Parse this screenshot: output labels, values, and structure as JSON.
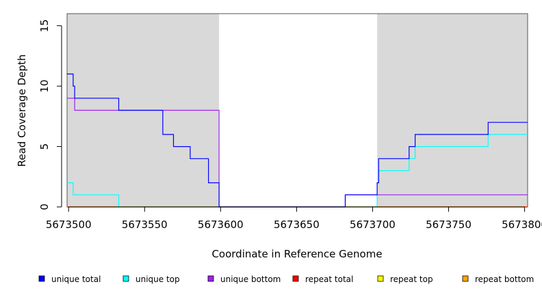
{
  "chart_data": {
    "type": "line",
    "step": true,
    "title": "",
    "xlabel": "Coordinate in Reference Genome",
    "ylabel": "Read Coverage Depth",
    "xlim": [
      5673499,
      5673802
    ],
    "ylim": [
      0,
      16
    ],
    "x_ticks": [
      5673500,
      5673550,
      5673600,
      5673650,
      5673700,
      5673750,
      5673800
    ],
    "x_tick_labels": [
      "5673500",
      "5673550",
      "5673600",
      "5673650",
      "5673700",
      "5673750",
      "5673800"
    ],
    "y_ticks": [
      0,
      5,
      10,
      15
    ],
    "y_tick_labels": [
      "0",
      "5",
      "10",
      "15"
    ],
    "shaded_regions": [
      {
        "from": 5673499,
        "to": 5673599,
        "color": "#d9d9d9"
      },
      {
        "from": 5673703,
        "to": 5673802,
        "color": "#d9d9d9"
      }
    ],
    "legend_position": "bottom",
    "series": [
      {
        "name": "unique total",
        "color": "#0000ff",
        "x": [
          5673499,
          5673503,
          5673504,
          5673533,
          5673562,
          5673569,
          5673580,
          5673592,
          5673599,
          5673682,
          5673703,
          5673704,
          5673724,
          5673728,
          5673776,
          5673802
        ],
        "values": [
          11,
          10,
          9,
          8,
          6,
          5,
          4,
          2,
          0,
          1,
          2,
          4,
          5,
          6,
          7,
          7
        ]
      },
      {
        "name": "unique top",
        "color": "#00ffff",
        "x": [
          5673499,
          5673503,
          5673533,
          5673703,
          5673704,
          5673724,
          5673728,
          5673776,
          5673802
        ],
        "values": [
          2,
          1,
          0,
          2,
          3,
          4,
          5,
          6,
          6
        ]
      },
      {
        "name": "unique bottom",
        "color": "#a020f0",
        "x": [
          5673499,
          5673504,
          5673533,
          5673599,
          5673682,
          5673802
        ],
        "values": [
          9,
          8,
          8,
          0,
          1,
          1
        ]
      },
      {
        "name": "repeat total",
        "color": "#ff0000",
        "x": [
          5673499,
          5673802
        ],
        "values": [
          0,
          0
        ]
      },
      {
        "name": "repeat top",
        "color": "#ffff00",
        "x": [
          5673499,
          5673802
        ],
        "values": [
          0,
          0
        ]
      },
      {
        "name": "repeat bottom",
        "color": "#ffa500",
        "x": [
          5673499,
          5673802
        ],
        "values": [
          0,
          0
        ]
      }
    ]
  }
}
